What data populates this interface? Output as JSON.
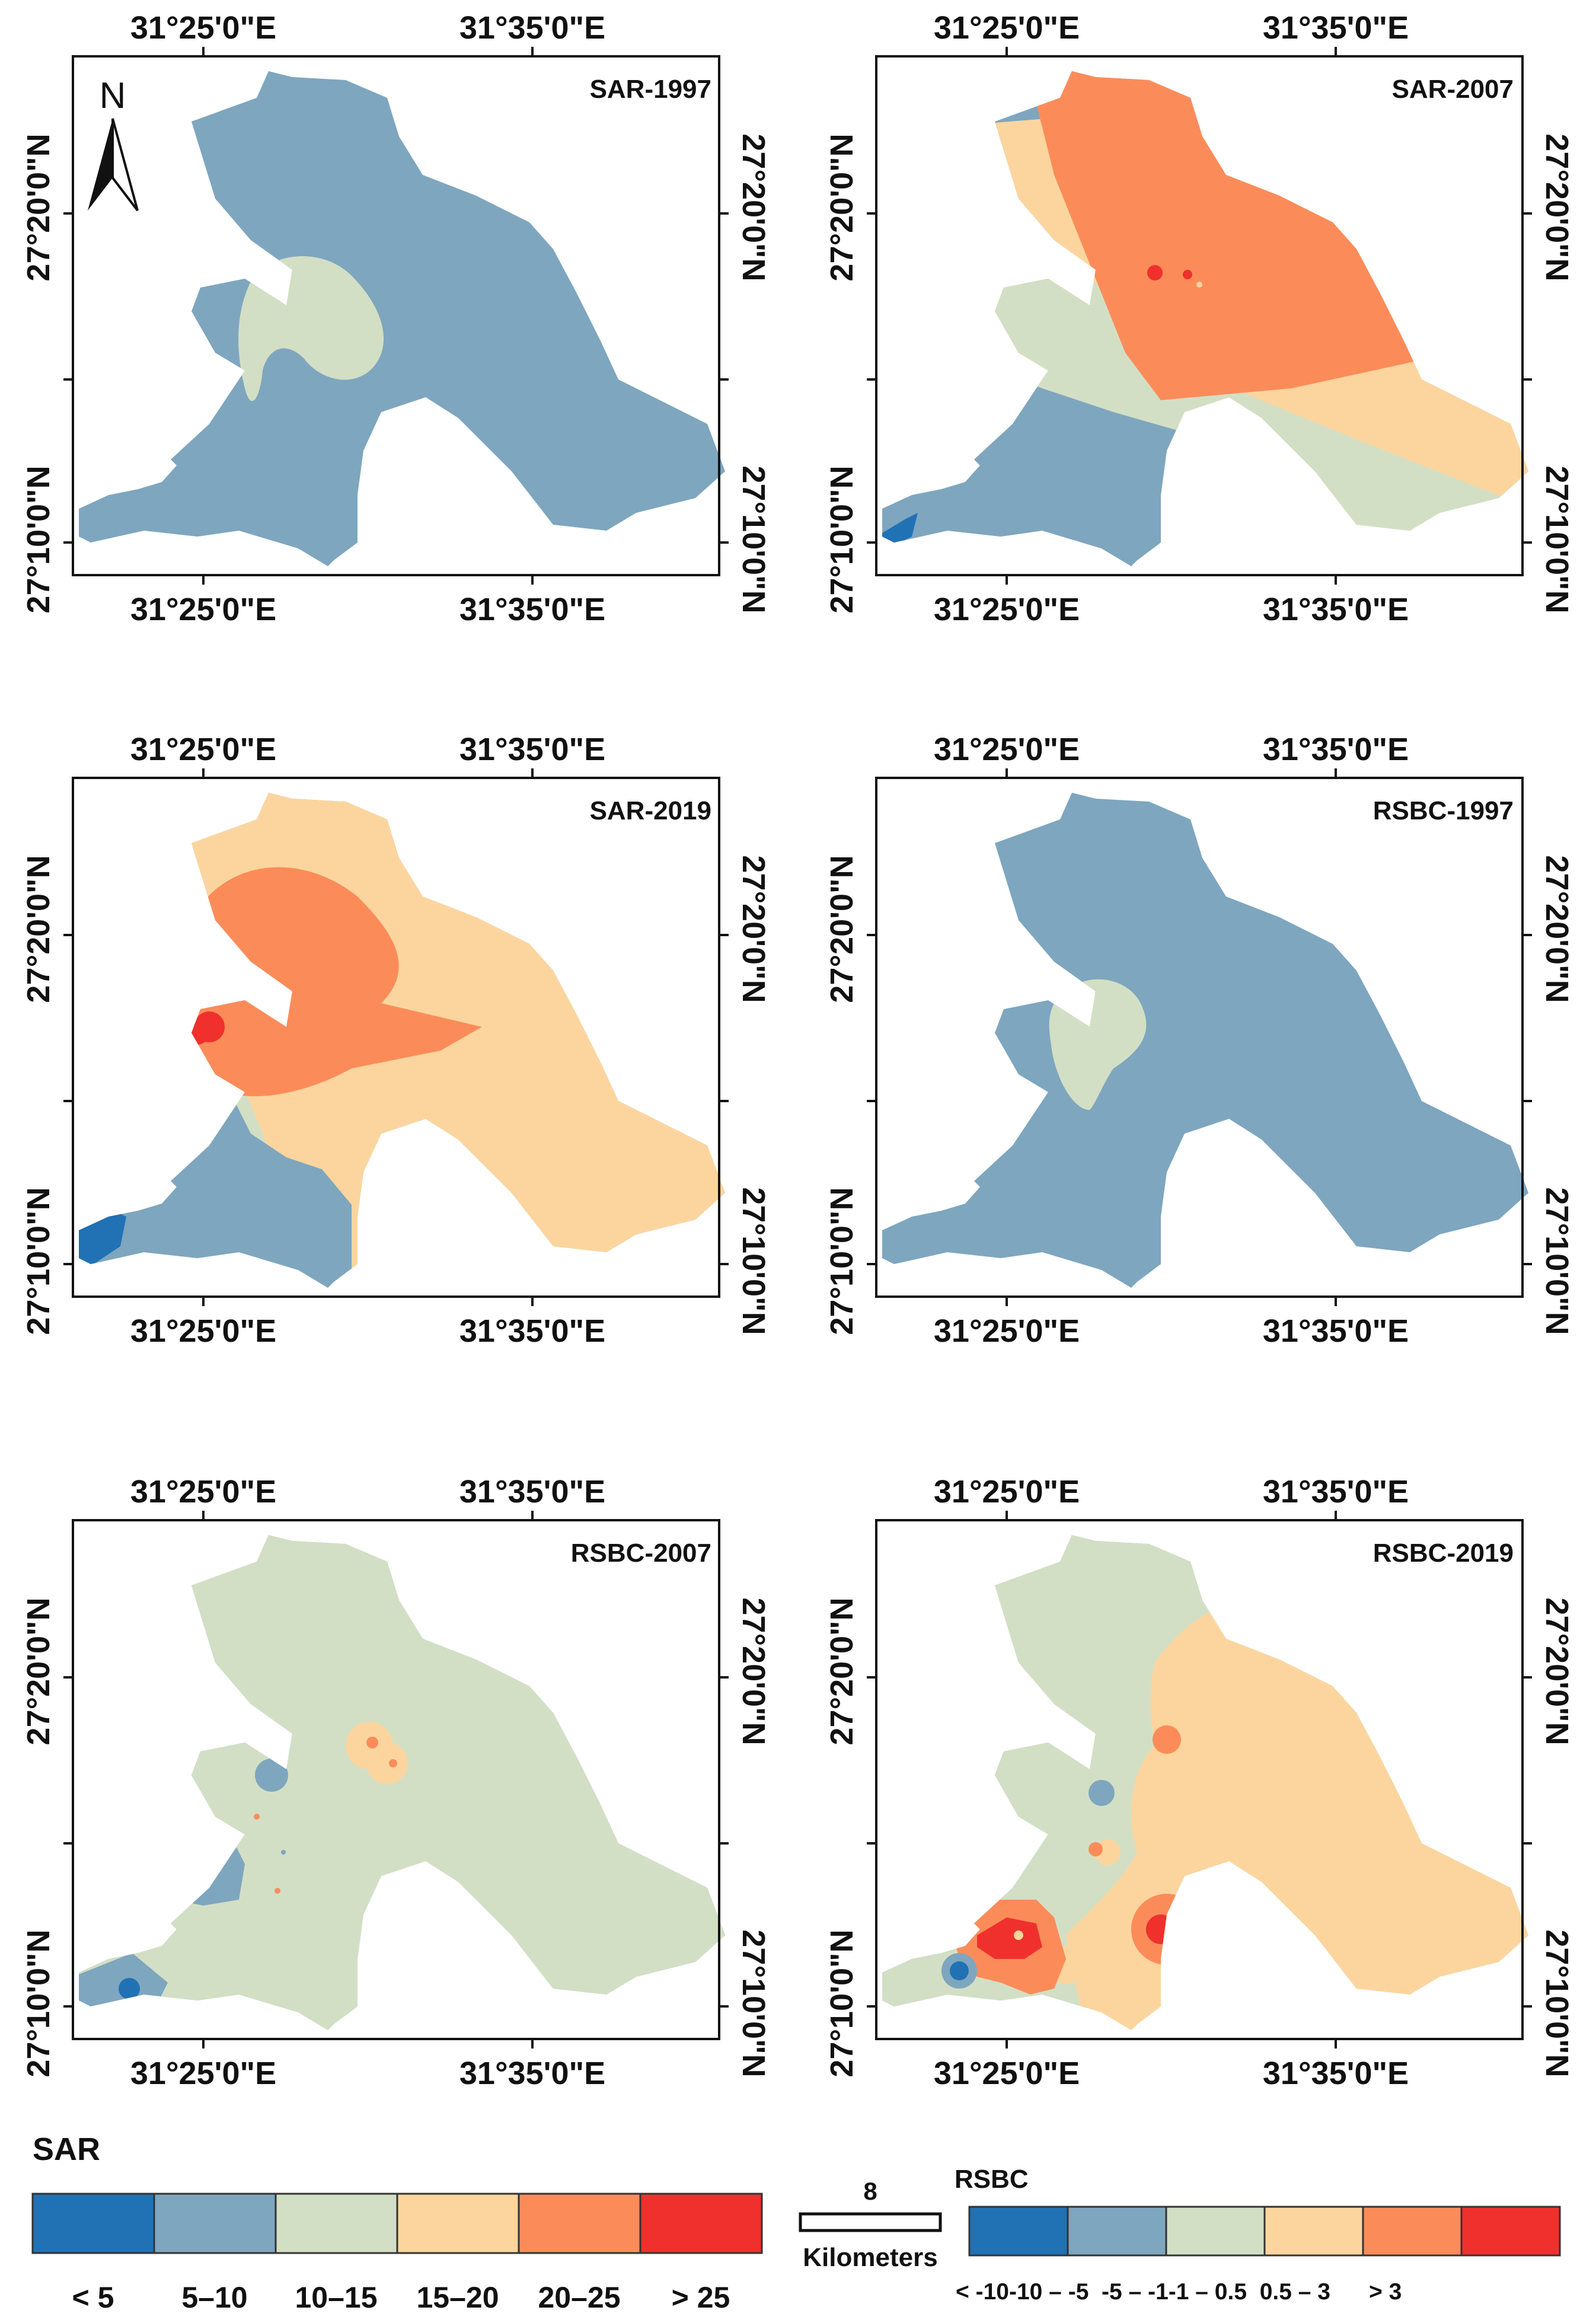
{
  "coordinates": {
    "lon_left": "31°25'0\"E",
    "lon_right": "31°35'0\"E",
    "lat_top": "27°20'0\"N",
    "lat_bottom": "27°10'0\"N"
  },
  "north_arrow": {
    "label": "N"
  },
  "panels": [
    {
      "title": "SAR-1997",
      "variable": "SAR",
      "zones": [
        "5–10",
        "10–15"
      ]
    },
    {
      "title": "SAR-2007",
      "variable": "SAR",
      "zones": [
        "< 5",
        "5–10",
        "10–15",
        "15–20",
        "20–25"
      ]
    },
    {
      "title": "SAR-2019",
      "variable": "SAR",
      "zones": [
        "< 5",
        "5–10",
        "10–15",
        "15–20",
        "20–25",
        "> 25"
      ]
    },
    {
      "title": "RSBC-1997",
      "variable": "RSBC",
      "zones": [
        "-10 – -5",
        "-5 – -1"
      ]
    },
    {
      "title": "RSBC-2007",
      "variable": "RSBC",
      "zones": [
        "< -10",
        "-10 – -5",
        "-5 – -1",
        "-1 – 0.5",
        "0.5 – 3"
      ]
    },
    {
      "title": "RSBC-2019",
      "variable": "RSBC",
      "zones": [
        "< -10",
        "-10 – -5",
        "-5 – -1",
        "-1 – 0.5",
        "0.5 – 3",
        "> 3"
      ]
    }
  ],
  "legend_sar": {
    "title": "SAR",
    "classes": [
      {
        "label": "< 5",
        "color": "#2171b5"
      },
      {
        "label": "5–10",
        "color": "#7ea6bf"
      },
      {
        "label": "10–15",
        "color": "#d3dfc4"
      },
      {
        "label": "15–20",
        "color": "#fcd59e"
      },
      {
        "label": "20–25",
        "color": "#fb8c5a"
      },
      {
        "label": "> 25",
        "color": "#f0302c"
      }
    ]
  },
  "legend_rsbc": {
    "title": "RSBC",
    "label_line": "< -10-10 – -5  -5 – -1-1 – 0.5  0.5 – 3      > 3",
    "classes": [
      {
        "color": "#2171b5"
      },
      {
        "color": "#7ea6bf"
      },
      {
        "color": "#d3dfc4"
      },
      {
        "color": "#fcd59e"
      },
      {
        "color": "#fb8c5a"
      },
      {
        "color": "#f0302c"
      }
    ]
  },
  "scale_bar": {
    "value": "8",
    "units": "Kilometers"
  }
}
